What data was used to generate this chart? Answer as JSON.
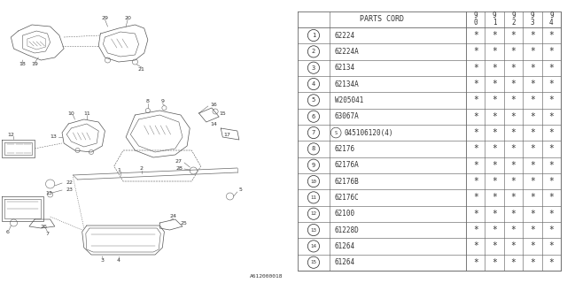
{
  "diagram_label": "A612000018",
  "parts_cord_header": "PARTS CORD",
  "year_cols": [
    "9\n0",
    "9\n1",
    "9\n2",
    "9\n3",
    "9\n4"
  ],
  "parts": [
    {
      "num": 1,
      "code": "62224"
    },
    {
      "num": 2,
      "code": "62224A"
    },
    {
      "num": 3,
      "code": "62134"
    },
    {
      "num": 4,
      "code": "62134A"
    },
    {
      "num": 5,
      "code": "W205041"
    },
    {
      "num": 6,
      "code": "63067A"
    },
    {
      "num": 7,
      "code": "045106120(4)",
      "special": true
    },
    {
      "num": 8,
      "code": "62176"
    },
    {
      "num": 9,
      "code": "62176A"
    },
    {
      "num": 10,
      "code": "62176B"
    },
    {
      "num": 11,
      "code": "62176C"
    },
    {
      "num": 12,
      "code": "62100"
    },
    {
      "num": 13,
      "code": "61228D"
    },
    {
      "num": 14,
      "code": "61264"
    },
    {
      "num": 15,
      "code": "61264"
    }
  ],
  "bg_color": "#ffffff",
  "line_color": "#666666",
  "text_color": "#333333"
}
